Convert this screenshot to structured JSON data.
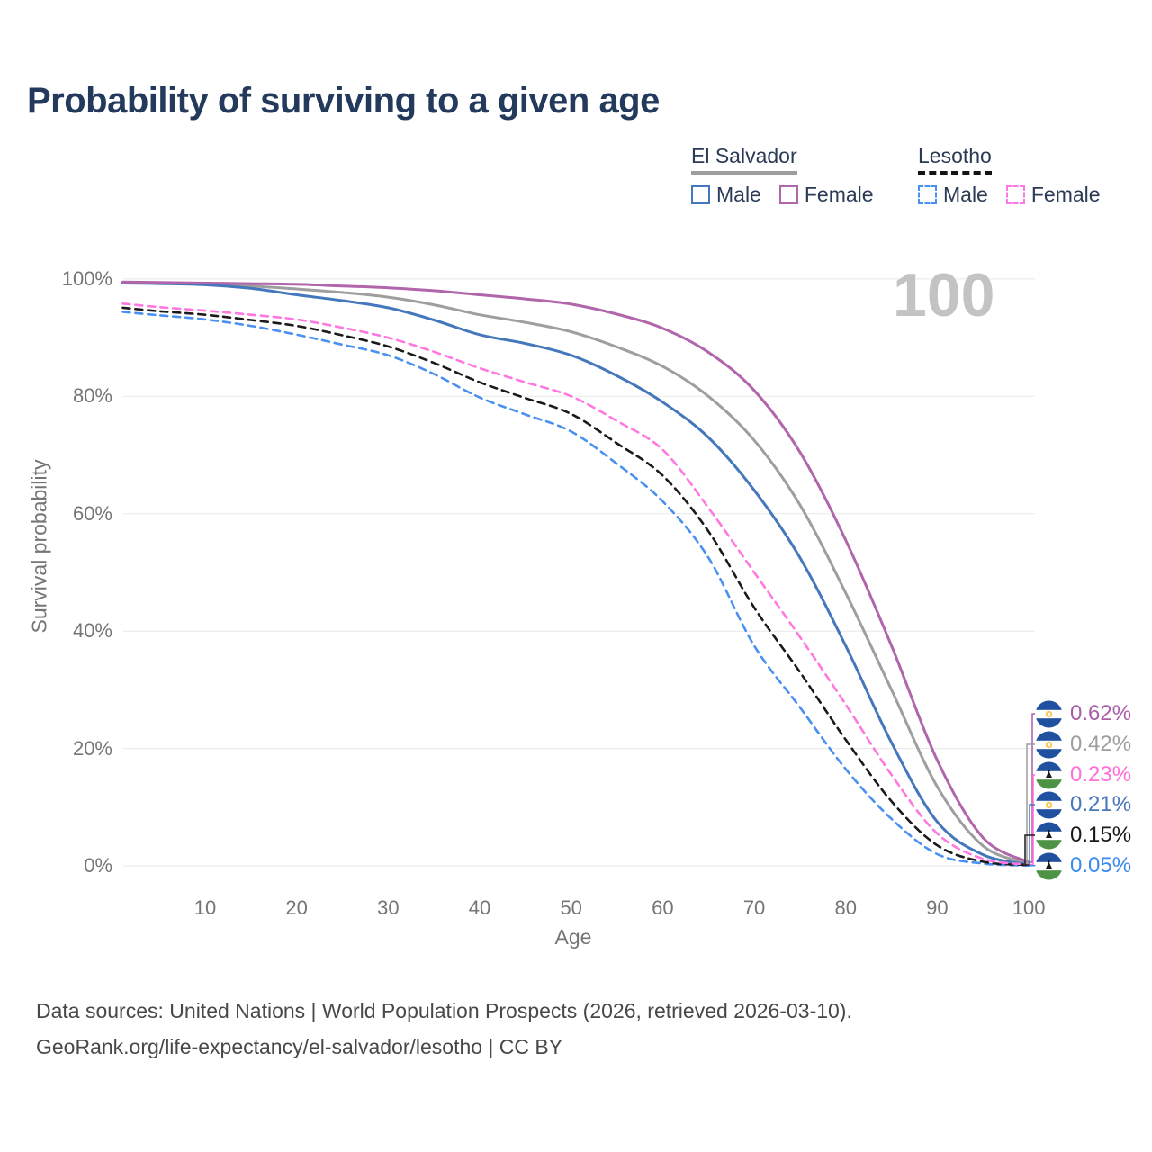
{
  "title": "Probability of surviving to a given age",
  "watermark_age_counter": "100",
  "legend": {
    "groups": [
      {
        "label": "El Salvador",
        "line_style": "solid",
        "line_color": "#9e9e9e",
        "items": [
          {
            "label": "Male",
            "color": "#4477bb",
            "dashed": false
          },
          {
            "label": "Female",
            "color": "#b165ab",
            "dashed": false
          }
        ]
      },
      {
        "label": "Lesotho",
        "line_style": "dashed",
        "line_color": "#141414",
        "items": [
          {
            "label": "Male",
            "color": "#4a90f2",
            "dashed": true
          },
          {
            "label": "Female",
            "color": "#ff78df",
            "dashed": true
          }
        ]
      }
    ]
  },
  "chart_data": {
    "type": "line",
    "title": "Probability of surviving to a given age",
    "xlabel": "Age",
    "ylabel": "Survival probability",
    "xlim": [
      1,
      100
    ],
    "ylim": [
      0,
      100
    ],
    "grid": true,
    "legend_position": "top-right",
    "x_ticks": [
      10,
      20,
      30,
      40,
      50,
      60,
      70,
      80,
      90,
      100
    ],
    "y_gridlines": [
      0,
      20,
      40,
      60,
      80,
      100
    ],
    "y_tick_labels": [
      "0%",
      "20%",
      "40%",
      "60%",
      "80%",
      "100%"
    ],
    "x": [
      1,
      5,
      10,
      15,
      20,
      25,
      30,
      35,
      40,
      45,
      50,
      55,
      60,
      65,
      70,
      75,
      80,
      85,
      90,
      95,
      100
    ],
    "series": [
      {
        "name": "El Salvador Both sexes",
        "color": "#9e9e9e",
        "dashed": false,
        "end_label": "0.42%",
        "values": [
          99.4,
          99.3,
          99.1,
          98.8,
          98.3,
          97.7,
          96.9,
          95.6,
          93.9,
          92.6,
          91.0,
          88.4,
          85.1,
          80.0,
          72.5,
          61.5,
          46.5,
          30.0,
          13.5,
          3.4,
          0.42
        ]
      },
      {
        "name": "El Salvador Male",
        "color": "#4477bb",
        "dashed": false,
        "end_label": "0.21%",
        "values": [
          99.3,
          99.2,
          99.0,
          98.4,
          97.3,
          96.3,
          95.1,
          93.0,
          90.5,
          89.0,
          87.0,
          83.5,
          79.0,
          73.0,
          64.0,
          52.5,
          37.5,
          21.0,
          7.5,
          1.9,
          0.21
        ]
      },
      {
        "name": "El Salvador Female",
        "color": "#b165ab",
        "dashed": false,
        "end_label": "0.62%",
        "values": [
          99.5,
          99.4,
          99.3,
          99.2,
          99.1,
          98.8,
          98.5,
          98.0,
          97.3,
          96.6,
          95.7,
          94.0,
          91.6,
          87.5,
          81.0,
          70.5,
          55.5,
          37.5,
          18.0,
          4.8,
          0.62
        ]
      },
      {
        "name": "Lesotho Male",
        "color": "#4a90f2",
        "dashed": true,
        "end_label": "0.05%",
        "values": [
          94.4,
          93.8,
          93.1,
          92.0,
          90.5,
          88.8,
          87.0,
          83.8,
          79.8,
          76.9,
          74.0,
          68.5,
          62.1,
          52.5,
          37.5,
          27.0,
          16.5,
          8.0,
          2.0,
          0.4,
          0.05
        ]
      },
      {
        "name": "Lesotho Both sexes",
        "color": "#1a1a1a",
        "dashed": true,
        "end_label": "0.15%",
        "values": [
          95.1,
          94.5,
          93.9,
          93.0,
          92.0,
          90.4,
          88.5,
          85.7,
          82.4,
          79.7,
          77.0,
          72.0,
          66.5,
          57.0,
          44.0,
          33.0,
          21.5,
          11.0,
          3.5,
          0.7,
          0.15
        ]
      },
      {
        "name": "Lesotho Female",
        "color": "#ff78df",
        "dashed": true,
        "end_label": "0.23%",
        "values": [
          95.8,
          95.2,
          94.6,
          93.9,
          93.1,
          91.7,
          90.0,
          87.6,
          84.8,
          82.4,
          80.0,
          75.8,
          70.9,
          61.0,
          50.0,
          39.0,
          27.5,
          15.5,
          5.5,
          1.2,
          0.23
        ]
      }
    ],
    "end_labels": [
      {
        "text": "0.62%",
        "color": "#a85fa8",
        "flag": "el-salvador",
        "series": "El Salvador Female"
      },
      {
        "text": "0.42%",
        "color": "#9e9e9e",
        "flag": "el-salvador",
        "series": "El Salvador Both sexes"
      },
      {
        "text": "0.23%",
        "color": "#ff6ed9",
        "flag": "lesotho",
        "series": "Lesotho Female"
      },
      {
        "text": "0.21%",
        "color": "#4a77bb",
        "flag": "el-salvador",
        "series": "El Salvador Male"
      },
      {
        "text": "0.15%",
        "color": "#1a1a1a",
        "flag": "lesotho",
        "series": "Lesotho Both sexes"
      },
      {
        "text": "0.05%",
        "color": "#3b8af0",
        "flag": "lesotho",
        "series": "Lesotho Male"
      }
    ]
  },
  "footer": {
    "line1": "Data sources: United Nations | World Population Prospects (2026, retrieved 2026-03-10).",
    "line2": "GeoRank.org/life-expectancy/el-salvador/lesotho | CC BY"
  }
}
